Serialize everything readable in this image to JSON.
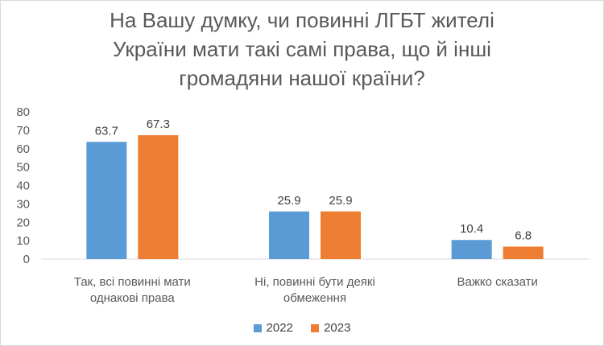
{
  "chart_data": {
    "type": "bar",
    "title_lines": [
      "На Вашу думку, чи повинні ЛГБТ жителі",
      "України мати такі самі права, що й інші",
      "громадяни нашої країни?"
    ],
    "categories": [
      [
        "Так, всі повинні мати",
        "однакові права"
      ],
      [
        "Ні, повинні бути деякі",
        "обмеження"
      ],
      [
        "Важко сказати"
      ]
    ],
    "series": [
      {
        "name": "2022",
        "color": "#5b9bd5",
        "values": [
          63.7,
          25.9,
          10.4
        ]
      },
      {
        "name": "2023",
        "color": "#ed7d31",
        "values": [
          67.3,
          25.9,
          6.8
        ]
      }
    ],
    "ylim": [
      0,
      80
    ],
    "yticks": [
      0,
      10,
      20,
      30,
      40,
      50,
      60,
      70,
      80
    ],
    "grid": false,
    "legend": "bottom",
    "data_labels": true
  }
}
